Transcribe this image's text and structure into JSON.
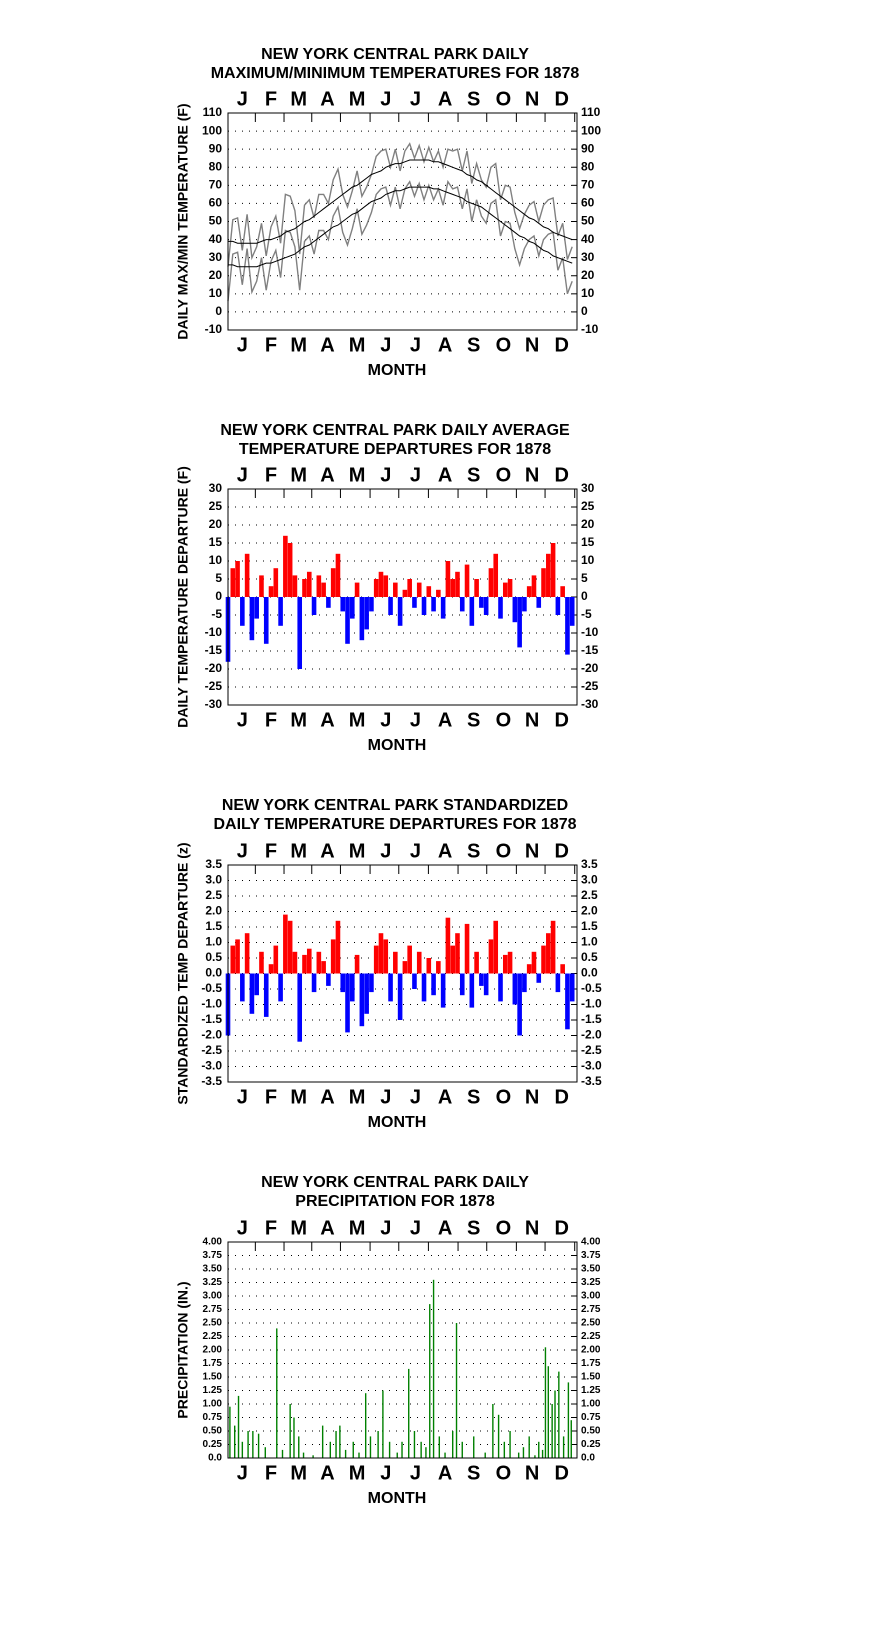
{
  "chart_data": [
    {
      "type": "line",
      "title": [
        "NEW YORK CENTRAL PARK DAILY",
        "MAXIMUM/MINIMUM TEMPERATURES FOR 1878"
      ],
      "y_label": "DAILY MAX/MIN TEMPERATURE (F)",
      "x_label": "MONTH",
      "xlim": [
        1,
        366
      ],
      "xticks": [
        {
          "value": 16,
          "label": "J"
        },
        {
          "value": 46,
          "label": "F"
        },
        {
          "value": 75,
          "label": "M"
        },
        {
          "value": 105,
          "label": "A"
        },
        {
          "value": 136,
          "label": "M"
        },
        {
          "value": 166,
          "label": "J"
        },
        {
          "value": 197,
          "label": "J"
        },
        {
          "value": 228,
          "label": "A"
        },
        {
          "value": 258,
          "label": "S"
        },
        {
          "value": 289,
          "label": "O"
        },
        {
          "value": 319,
          "label": "N"
        },
        {
          "value": 350,
          "label": "D"
        }
      ],
      "ylim": [
        -10,
        110
      ],
      "yticks": [
        -10,
        0,
        10,
        20,
        30,
        40,
        50,
        60,
        70,
        80,
        90,
        100,
        110
      ],
      "grid": true,
      "x": [
        1,
        6,
        11,
        16,
        21,
        26,
        31,
        36,
        41,
        46,
        51,
        56,
        61,
        66,
        71,
        76,
        81,
        86,
        91,
        96,
        101,
        106,
        111,
        116,
        121,
        126,
        131,
        136,
        141,
        146,
        151,
        156,
        161,
        166,
        171,
        176,
        181,
        186,
        191,
        196,
        201,
        206,
        211,
        216,
        221,
        226,
        231,
        236,
        241,
        246,
        251,
        256,
        261,
        266,
        271,
        276,
        281,
        286,
        291,
        296,
        301,
        306,
        311,
        316,
        321,
        326,
        331,
        336,
        341,
        346,
        351,
        356,
        361
      ],
      "series": [
        {
          "color": "#808080",
          "values": [
            25,
            51,
            52,
            34,
            54,
            30,
            36,
            49,
            31,
            47,
            53,
            38,
            65,
            64,
            56,
            32,
            59,
            62,
            52,
            65,
            65,
            60,
            73,
            79,
            65,
            58,
            67,
            78,
            64,
            69,
            76,
            86,
            89,
            90,
            80,
            90,
            78,
            89,
            93,
            85,
            92,
            83,
            91,
            83,
            89,
            80,
            90,
            89,
            90,
            78,
            89,
            71,
            82,
            73,
            69,
            80,
            82,
            62,
            70,
            69,
            55,
            46,
            54,
            59,
            61,
            50,
            59,
            62,
            63,
            42,
            49,
            29,
            36
          ]
        },
        {
          "color": "#808080",
          "values": [
            6,
            32,
            33,
            15,
            35,
            11,
            17,
            30,
            12,
            28,
            34,
            19,
            45,
            44,
            36,
            12,
            39,
            42,
            32,
            45,
            45,
            40,
            53,
            58,
            44,
            37,
            46,
            57,
            43,
            48,
            55,
            65,
            68,
            69,
            59,
            69,
            57,
            68,
            72,
            64,
            71,
            62,
            70,
            62,
            68,
            59,
            72,
            68,
            69,
            57,
            68,
            50,
            62,
            53,
            49,
            60,
            62,
            42,
            50,
            49,
            35,
            26,
            35,
            40,
            42,
            31,
            40,
            43,
            44,
            23,
            30,
            10,
            17
          ]
        },
        {
          "color": "#000000",
          "values": [
            39,
            39,
            38,
            38,
            38,
            38,
            38,
            39,
            40,
            40,
            41,
            42,
            44,
            45,
            46,
            48,
            50,
            51,
            53,
            55,
            57,
            59,
            61,
            63,
            65,
            67,
            69,
            70,
            72,
            74,
            76,
            77,
            78,
            80,
            81,
            82,
            82,
            83,
            84,
            84,
            84,
            84,
            84,
            83,
            83,
            82,
            81,
            80,
            79,
            78,
            76,
            75,
            73,
            72,
            70,
            68,
            66,
            64,
            62,
            60,
            58,
            56,
            54,
            52,
            51,
            49,
            47,
            46,
            44,
            43,
            42,
            41,
            40
          ]
        },
        {
          "color": "#000000",
          "values": [
            26,
            26,
            25,
            25,
            25,
            25,
            25,
            26,
            27,
            27,
            28,
            29,
            30,
            31,
            32,
            34,
            36,
            37,
            39,
            41,
            43,
            45,
            47,
            48,
            50,
            52,
            54,
            55,
            57,
            59,
            61,
            62,
            63,
            65,
            66,
            67,
            67,
            68,
            69,
            69,
            69,
            69,
            69,
            68,
            68,
            67,
            66,
            65,
            64,
            63,
            61,
            60,
            59,
            58,
            56,
            54,
            52,
            50,
            48,
            46,
            44,
            42,
            41,
            39,
            38,
            36,
            34,
            33,
            31,
            30,
            29,
            28,
            27
          ]
        }
      ]
    },
    {
      "type": "bar",
      "title": [
        "NEW YORK CENTRAL PARK DAILY AVERAGE",
        "TEMPERATURE DEPARTURES FOR 1878"
      ],
      "y_label": "DAILY TEMPERATURE DEPARTURE (F)",
      "x_label": "MONTH",
      "xlim": [
        1,
        366
      ],
      "xticks": [
        {
          "value": 16,
          "label": "J"
        },
        {
          "value": 46,
          "label": "F"
        },
        {
          "value": 75,
          "label": "M"
        },
        {
          "value": 105,
          "label": "A"
        },
        {
          "value": 136,
          "label": "M"
        },
        {
          "value": 166,
          "label": "J"
        },
        {
          "value": 197,
          "label": "J"
        },
        {
          "value": 228,
          "label": "A"
        },
        {
          "value": 258,
          "label": "S"
        },
        {
          "value": 289,
          "label": "O"
        },
        {
          "value": 319,
          "label": "N"
        },
        {
          "value": 350,
          "label": "D"
        }
      ],
      "ylim": [
        -30,
        30
      ],
      "yticks": [
        -30,
        -25,
        -20,
        -15,
        -10,
        -5,
        0,
        5,
        10,
        15,
        20,
        25,
        30
      ],
      "grid": true,
      "positive_color": "#ff0000",
      "negative_color": "#0000ff",
      "x": [
        1,
        6,
        11,
        16,
        21,
        26,
        31,
        36,
        41,
        46,
        51,
        56,
        61,
        66,
        71,
        76,
        81,
        86,
        91,
        96,
        101,
        106,
        111,
        116,
        121,
        126,
        131,
        136,
        141,
        146,
        151,
        156,
        161,
        166,
        171,
        176,
        181,
        186,
        191,
        196,
        201,
        206,
        211,
        216,
        221,
        226,
        231,
        236,
        241,
        246,
        251,
        256,
        261,
        266,
        271,
        276,
        281,
        286,
        291,
        296,
        301,
        306,
        311,
        316,
        321,
        326,
        331,
        336,
        341,
        346,
        351,
        356,
        361
      ],
      "values": [
        -18,
        8,
        10,
        -8,
        12,
        -12,
        -6,
        6,
        -13,
        3,
        8,
        -8,
        17,
        15,
        6,
        -20,
        5,
        7,
        -5,
        6,
        4,
        -3,
        8,
        12,
        -4,
        -13,
        -6,
        4,
        -12,
        -9,
        -4,
        5,
        7,
        6,
        -5,
        4,
        -8,
        2,
        5,
        -3,
        4,
        -5,
        3,
        -4,
        2,
        -6,
        10,
        5,
        7,
        -4,
        9,
        -8,
        5,
        -3,
        -5,
        8,
        12,
        -6,
        4,
        5,
        -7,
        -14,
        -4,
        3,
        6,
        -3,
        8,
        12,
        15,
        -5,
        3,
        -16,
        -8
      ]
    },
    {
      "type": "bar",
      "title": [
        "NEW YORK CENTRAL PARK STANDARDIZED",
        "DAILY TEMPERATURE DEPARTURES FOR 1878"
      ],
      "y_label": "STANDARDIZED TEMP DEPARTURE (z)",
      "x_label": "MONTH",
      "xlim": [
        1,
        366
      ],
      "xticks": [
        {
          "value": 16,
          "label": "J"
        },
        {
          "value": 46,
          "label": "F"
        },
        {
          "value": 75,
          "label": "M"
        },
        {
          "value": 105,
          "label": "A"
        },
        {
          "value": 136,
          "label": "M"
        },
        {
          "value": 166,
          "label": "J"
        },
        {
          "value": 197,
          "label": "J"
        },
        {
          "value": 228,
          "label": "A"
        },
        {
          "value": 258,
          "label": "S"
        },
        {
          "value": 289,
          "label": "O"
        },
        {
          "value": 319,
          "label": "N"
        },
        {
          "value": 350,
          "label": "D"
        }
      ],
      "ylim": [
        -3.5,
        3.5
      ],
      "yticks": [
        -3.5,
        {
          "value": -3,
          "label": "-3.0"
        },
        -2.5,
        {
          "value": -2,
          "label": "-2.0"
        },
        -1.5,
        {
          "value": -1,
          "label": "-1.0"
        },
        -0.5,
        {
          "value": 0,
          "label": "0.0"
        },
        0.5,
        {
          "value": 1,
          "label": "1.0"
        },
        1.5,
        {
          "value": 2,
          "label": "2.0"
        },
        2.5,
        {
          "value": 3,
          "label": "3.0"
        },
        3.5
      ],
      "grid": true,
      "positive_color": "#ff0000",
      "negative_color": "#0000ff",
      "x": [
        1,
        6,
        11,
        16,
        21,
        26,
        31,
        36,
        41,
        46,
        51,
        56,
        61,
        66,
        71,
        76,
        81,
        86,
        91,
        96,
        101,
        106,
        111,
        116,
        121,
        126,
        131,
        136,
        141,
        146,
        151,
        156,
        161,
        166,
        171,
        176,
        181,
        186,
        191,
        196,
        201,
        206,
        211,
        216,
        221,
        226,
        231,
        236,
        241,
        246,
        251,
        256,
        261,
        266,
        271,
        276,
        281,
        286,
        291,
        296,
        301,
        306,
        311,
        316,
        321,
        326,
        331,
        336,
        341,
        346,
        351,
        356,
        361
      ],
      "values": [
        -2.0,
        0.9,
        1.1,
        -0.9,
        1.3,
        -1.3,
        -0.7,
        0.7,
        -1.4,
        0.3,
        0.9,
        -0.9,
        1.9,
        1.7,
        0.7,
        -2.2,
        0.6,
        0.8,
        -0.6,
        0.7,
        0.4,
        -0.4,
        1.1,
        1.7,
        -0.6,
        -1.9,
        -0.9,
        0.6,
        -1.7,
        -1.3,
        -0.6,
        0.9,
        1.3,
        1.1,
        -0.9,
        0.7,
        -1.5,
        0.4,
        0.9,
        -0.5,
        0.7,
        -0.9,
        0.5,
        -0.7,
        0.4,
        -1.1,
        1.8,
        0.9,
        1.3,
        -0.7,
        1.6,
        -1.1,
        0.7,
        -0.4,
        -0.7,
        1.1,
        1.7,
        -0.9,
        0.6,
        0.7,
        -1.0,
        -2.0,
        -0.6,
        0.3,
        0.7,
        -0.3,
        0.9,
        1.3,
        1.7,
        -0.6,
        0.3,
        -1.8,
        -0.9
      ]
    },
    {
      "type": "bar",
      "title": [
        "NEW YORK CENTRAL PARK DAILY",
        "PRECIPITATION FOR 1878"
      ],
      "y_label": "PRECIPITATION (IN.)",
      "x_label": "MONTH",
      "xlim": [
        1,
        366
      ],
      "xticks": [
        {
          "value": 16,
          "label": "J"
        },
        {
          "value": 46,
          "label": "F"
        },
        {
          "value": 75,
          "label": "M"
        },
        {
          "value": 105,
          "label": "A"
        },
        {
          "value": 136,
          "label": "M"
        },
        {
          "value": 166,
          "label": "J"
        },
        {
          "value": 197,
          "label": "J"
        },
        {
          "value": 228,
          "label": "A"
        },
        {
          "value": 258,
          "label": "S"
        },
        {
          "value": 289,
          "label": "O"
        },
        {
          "value": 319,
          "label": "N"
        },
        {
          "value": 350,
          "label": "D"
        }
      ],
      "ylim": [
        0,
        4
      ],
      "yticks": [
        {
          "value": 0,
          "label": "0.0"
        },
        0.25,
        {
          "value": 0.5,
          "label": "0.50"
        },
        0.75,
        {
          "value": 1,
          "label": "1.00"
        },
        1.25,
        {
          "value": 1.5,
          "label": "1.50"
        },
        1.75,
        {
          "value": 2,
          "label": "2.00"
        },
        2.25,
        {
          "value": 2.5,
          "label": "2.50"
        },
        2.75,
        {
          "value": 3,
          "label": "3.00"
        },
        3.25,
        {
          "value": 3.5,
          "label": "3.50"
        },
        3.75,
        {
          "value": 4,
          "label": "4.00"
        }
      ],
      "grid": true,
      "color": "#008000",
      "x": [
        3,
        8,
        12,
        16,
        22,
        27,
        33,
        40,
        52,
        58,
        66,
        70,
        75,
        80,
        90,
        100,
        108,
        114,
        118,
        124,
        132,
        138,
        145,
        150,
        158,
        163,
        170,
        178,
        183,
        190,
        196,
        203,
        208,
        212,
        216,
        222,
        228,
        236,
        240,
        246,
        258,
        270,
        278,
        284,
        290,
        296,
        305,
        310,
        316,
        322,
        326,
        330,
        333,
        336,
        340,
        343,
        347,
        352,
        357,
        360
      ],
      "values": [
        0.95,
        0.6,
        1.15,
        0.3,
        0.5,
        0.5,
        0.45,
        0.2,
        2.4,
        0.15,
        1.0,
        0.75,
        0.4,
        0.1,
        0.05,
        0.6,
        0.3,
        0.5,
        0.6,
        0.15,
        0.3,
        0.1,
        1.2,
        0.4,
        0.5,
        1.25,
        0.3,
        0.1,
        0.3,
        1.65,
        0.5,
        0.3,
        0.2,
        2.85,
        3.3,
        0.4,
        0.1,
        0.5,
        2.5,
        0.3,
        0.4,
        0.1,
        1.0,
        0.8,
        0.3,
        0.5,
        0.1,
        0.2,
        0.4,
        0.05,
        0.3,
        0.15,
        2.05,
        1.7,
        1.0,
        1.25,
        1.6,
        0.4,
        1.4,
        0.7
      ]
    }
  ]
}
